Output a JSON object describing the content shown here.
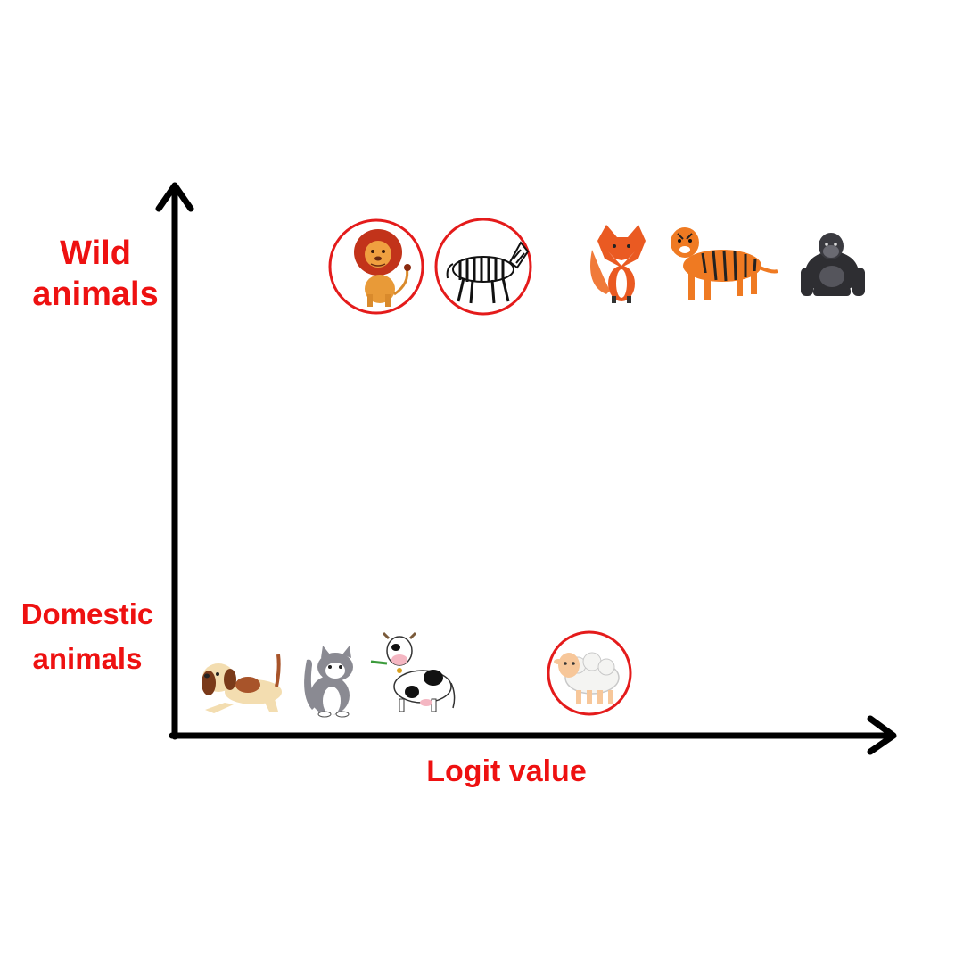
{
  "labels": {
    "wild_line1": "Wild",
    "wild_line2": "animals",
    "domestic_line1": "Domestic",
    "domestic_line2": "animals",
    "x_axis": "Logit value"
  },
  "colors": {
    "label": "#ee1111",
    "axis": "#000000",
    "highlight_circle": "#e41b1b"
  },
  "animals": [
    {
      "name": "lion",
      "group": "wild",
      "highlighted": true,
      "icon": "lion-icon"
    },
    {
      "name": "zebra",
      "group": "wild",
      "highlighted": true,
      "icon": "zebra-icon"
    },
    {
      "name": "fox",
      "group": "wild",
      "highlighted": false,
      "icon": "fox-icon"
    },
    {
      "name": "tiger",
      "group": "wild",
      "highlighted": false,
      "icon": "tiger-icon"
    },
    {
      "name": "gorilla",
      "group": "wild",
      "highlighted": false,
      "icon": "gorilla-icon"
    },
    {
      "name": "dog",
      "group": "domestic",
      "highlighted": false,
      "icon": "dog-icon"
    },
    {
      "name": "cat",
      "group": "domestic",
      "highlighted": false,
      "icon": "cat-icon"
    },
    {
      "name": "cow",
      "group": "domestic",
      "highlighted": false,
      "icon": "cow-icon"
    },
    {
      "name": "sheep",
      "group": "domestic",
      "highlighted": true,
      "icon": "sheep-icon"
    }
  ]
}
